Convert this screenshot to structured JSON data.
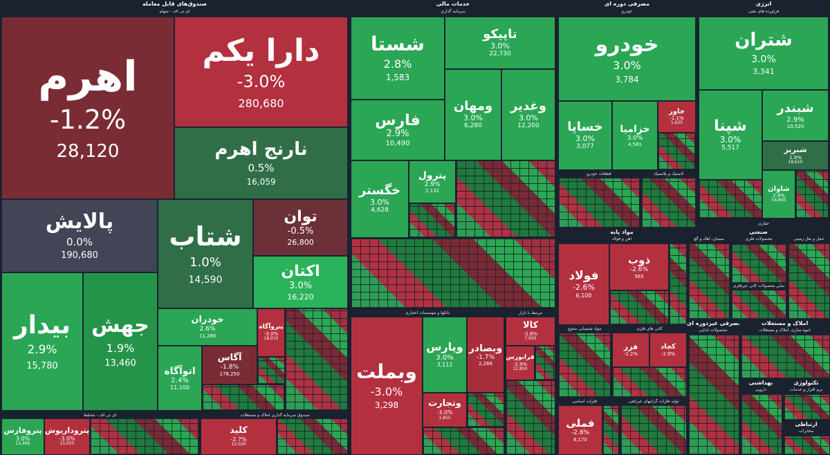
{
  "sections": {
    "funds": {
      "title": "صندوق‌های قابل معامله",
      "sub1": "ای تی اف - سهام",
      "sub2": "ای تی اف - مختلط",
      "sub3": "صندوق سرمایه گذاری املاک و مستغلات"
    },
    "finance": {
      "title": "خدمات مالی",
      "sub1": "سرمایه گذاری",
      "sub2": "بانکها و موسسات اعتباری",
      "sub3": "مرتبط با بازار"
    },
    "consumer": {
      "title": "مصرفی دوره ای",
      "sub1": "خودرو",
      "sub2": "قطعات خودرو",
      "sub3": "لاستیک و پلاستیک"
    },
    "energy": {
      "title": "انرژی",
      "sub1": "فراورده های نفتی",
      "footer": "حفاری"
    },
    "materials": {
      "title": "مواد پایه",
      "sub1": "آهن و فولاد",
      "sub2": "مواد شیمیایی متنوع",
      "sub3": "کانی های فلزی",
      "sub4": "فلزات اساسی",
      "sub5": "تولید فلزات گرانبهای غیرآهنی",
      "sub6": "سیمان، آهک و گچ"
    },
    "industrial": {
      "title": "صنعتی",
      "sub1": "محصولات فلزی",
      "sub2": "سایر محصولات کانی غیرفلزی",
      "sub3": "حمل و نقل زمینی"
    },
    "nondurable": {
      "title": "مصرفی غیردوره ای",
      "sub1": "محصولات غذایی"
    },
    "realestate": {
      "title": "املاک و مستغلات",
      "sub1": "انبوه سازی، املاک و مستغلات"
    },
    "health": {
      "title": "بهداشتی",
      "sub1": "دارویی"
    },
    "tech": {
      "title": "تکنولوژی",
      "sub1": "نرم افزار و خدمات"
    },
    "comm": {
      "title": "ارتباطی",
      "sub1": "مخابرات"
    }
  },
  "tiles": {
    "ahrom": {
      "name": "اهرم",
      "pct": "-1.2%",
      "val": "28,120"
    },
    "daraykam": {
      "name": "دارا یکم",
      "pct": "-3.0%",
      "val": "280,680"
    },
    "narenj": {
      "name": "نارنج اهرم",
      "pct": "0.5%",
      "val": "16,059"
    },
    "palayesh": {
      "name": "پالایش",
      "pct": "0.0%",
      "val": "190,680"
    },
    "shetab": {
      "name": "شتاب",
      "pct": "1.0%",
      "val": "14,590"
    },
    "tavan": {
      "name": "توان",
      "pct": "-0.5%",
      "val": "26,800"
    },
    "aktan": {
      "name": "اکتان",
      "pct": "3.0%",
      "val": "16,220"
    },
    "bidar": {
      "name": "بیدار",
      "pct": "2.9%",
      "val": "15,780"
    },
    "jahesh": {
      "name": "جهش",
      "pct": "1.9%",
      "val": "13,460"
    },
    "khodran": {
      "name": "خودران",
      "pct": "2.6%",
      "val": "11,280"
    },
    "otagah": {
      "name": "اتوآگاه",
      "pct": "2.4%",
      "val": "11,100"
    },
    "agas": {
      "name": "آگاس",
      "pct": "-1.8%",
      "val": "178,250"
    },
    "petroagah": {
      "name": "پتروآگاه",
      "pct": "-3.0%",
      "val": "18,010"
    },
    "petrofars": {
      "name": "پتروفارس",
      "pct": "3.0%",
      "val": "15,466"
    },
    "petrodaryush": {
      "name": "پتروداریوش",
      "pct": "-3.0%",
      "val": "15,055"
    },
    "kalid": {
      "name": "کلید",
      "pct": "-2.7%",
      "val": "12,020"
    },
    "shasta": {
      "name": "شستا",
      "pct": "2.8%",
      "val": "1,583"
    },
    "tapiko": {
      "name": "تاپیکو",
      "pct": "3.0%",
      "val": "22,730"
    },
    "fars": {
      "name": "فارس",
      "pct": "2.9%",
      "val": "10,490"
    },
    "vamhan": {
      "name": "ومهان",
      "pct": "3.0%",
      "val": "6,280"
    },
    "vghadir": {
      "name": "وغدیر",
      "pct": "3.0%",
      "val": "12,200"
    },
    "khagostar": {
      "name": "خگستر",
      "pct": "3.0%",
      "val": "4,628"
    },
    "petrol": {
      "name": "پترول",
      "pct": "2.9%",
      "val": "2,132"
    },
    "vabmellat": {
      "name": "وبملت",
      "pct": "-3.0%",
      "val": "3,298"
    },
    "vparsian": {
      "name": "وپارس",
      "pct": "3.0%",
      "val": "3,112"
    },
    "vbsader": {
      "name": "وبصادر",
      "pct": "-1.7%",
      "val": "2,268"
    },
    "kala": {
      "name": "کالا",
      "pct": "-2.8%",
      "val": "7,650"
    },
    "farabourse": {
      "name": "فرابورس",
      "pct": "-2.9%",
      "val": "12,850"
    },
    "vtejarat": {
      "name": "وتجارت",
      "pct": "-3.0%",
      "val": "1,855"
    },
    "khodro": {
      "name": "خودرو",
      "pct": "3.0%",
      "val": "3,784"
    },
    "khsapa": {
      "name": "خساپا",
      "pct": "3.0%",
      "val": "3,077"
    },
    "khazamia": {
      "name": "خزامیا",
      "pct": "3.0%",
      "val": "4,581"
    },
    "khavar": {
      "name": "خاور",
      "pct": "-1.1%",
      "val": "1,625"
    },
    "shetran": {
      "name": "شتران",
      "pct": "3.0%",
      "val": "3,341"
    },
    "shbandar": {
      "name": "شبندر",
      "pct": "2.9%",
      "val": "10,520"
    },
    "shpna": {
      "name": "شپنا",
      "pct": "3.0%",
      "val": "5,517"
    },
    "shbriz": {
      "name": "شبریز",
      "pct": "1.9%",
      "val": "18,610"
    },
    "shavan": {
      "name": "شاوان",
      "pct": "2.9%",
      "val": "54,800"
    },
    "folad": {
      "name": "فولاد",
      "pct": "-2.6%",
      "val": "6,100"
    },
    "zob": {
      "name": "ذوب",
      "pct": "-2.6%",
      "val": "565"
    },
    "fameli": {
      "name": "فملی",
      "pct": "-2.8%",
      "val": "8,170"
    },
    "fazar": {
      "name": "فزر",
      "pct": "-2.2%",
      "val": ""
    },
    "kachad": {
      "name": "کچاد",
      "pct": "-2.9%",
      "val": ""
    }
  }
}
